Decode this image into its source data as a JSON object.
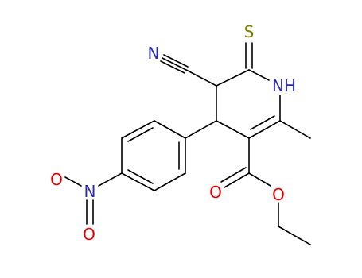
{
  "atoms": [
    {
      "label": "S"
    },
    {
      "label": "N"
    },
    {
      "label": "NH"
    },
    {
      "label": "O"
    },
    {
      "label": "O"
    },
    {
      "label": "N"
    },
    {
      "label": "O"
    },
    {
      "label": "O"
    }
  ]
}
